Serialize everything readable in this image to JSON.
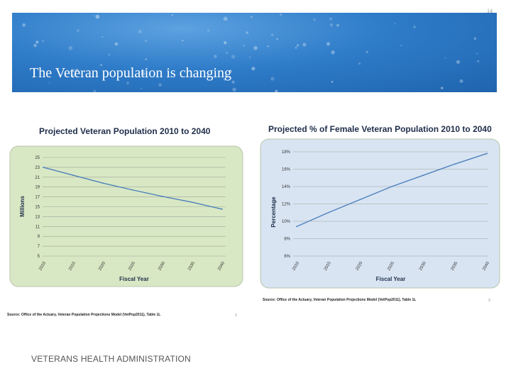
{
  "slide": {
    "page_number": "14",
    "title": "The Veteran population is changing",
    "footer": "VETERANS HEALTH ADMINISTRATION"
  },
  "colors": {
    "banner": "#2f7cc9",
    "chart1_bg": "#d9e8c4",
    "chart2_bg": "#d8e4f2",
    "line": "#4f81bd",
    "title_text": "#1f2e4a"
  },
  "chart_data": [
    {
      "type": "line",
      "title": "Projected Veteran Population 2010 to 2040",
      "xlabel": "Fiscal Year",
      "ylabel": "Millions",
      "categories": [
        "2010",
        "2015",
        "2020",
        "2025",
        "2030",
        "2035",
        "2040"
      ],
      "values": [
        23,
        21.4,
        19.8,
        18.4,
        17.1,
        15.9,
        14.5
      ],
      "yticks": [
        "25",
        "23",
        "21",
        "19",
        "17",
        "15",
        "13",
        "11",
        "9",
        "7",
        "5"
      ],
      "ylim": [
        5,
        25
      ],
      "source": "Source: Office of the Actuary, Veteran Population Projections Model (VetPop2011), Table 1L",
      "source_ref": "2"
    },
    {
      "type": "line",
      "title": "Projected % of Female Veteran Population 2010 to 2040",
      "xlabel": "Fiscal Year",
      "ylabel": "Percentage",
      "categories": [
        "2010",
        "2015",
        "2020",
        "2025",
        "2030",
        "2035",
        "2040"
      ],
      "values": [
        9.4,
        11.0,
        12.5,
        14.0,
        15.3,
        16.6,
        17.8
      ],
      "yticks": [
        "18%",
        "16%",
        "14%",
        "12%",
        "10%",
        "8%",
        "6%"
      ],
      "ylim": [
        6,
        18
      ],
      "source": "Source: Office of the Actuary, Veteran Population Projections Model (VetPop2011), Table 1L",
      "source_ref": "3"
    }
  ]
}
